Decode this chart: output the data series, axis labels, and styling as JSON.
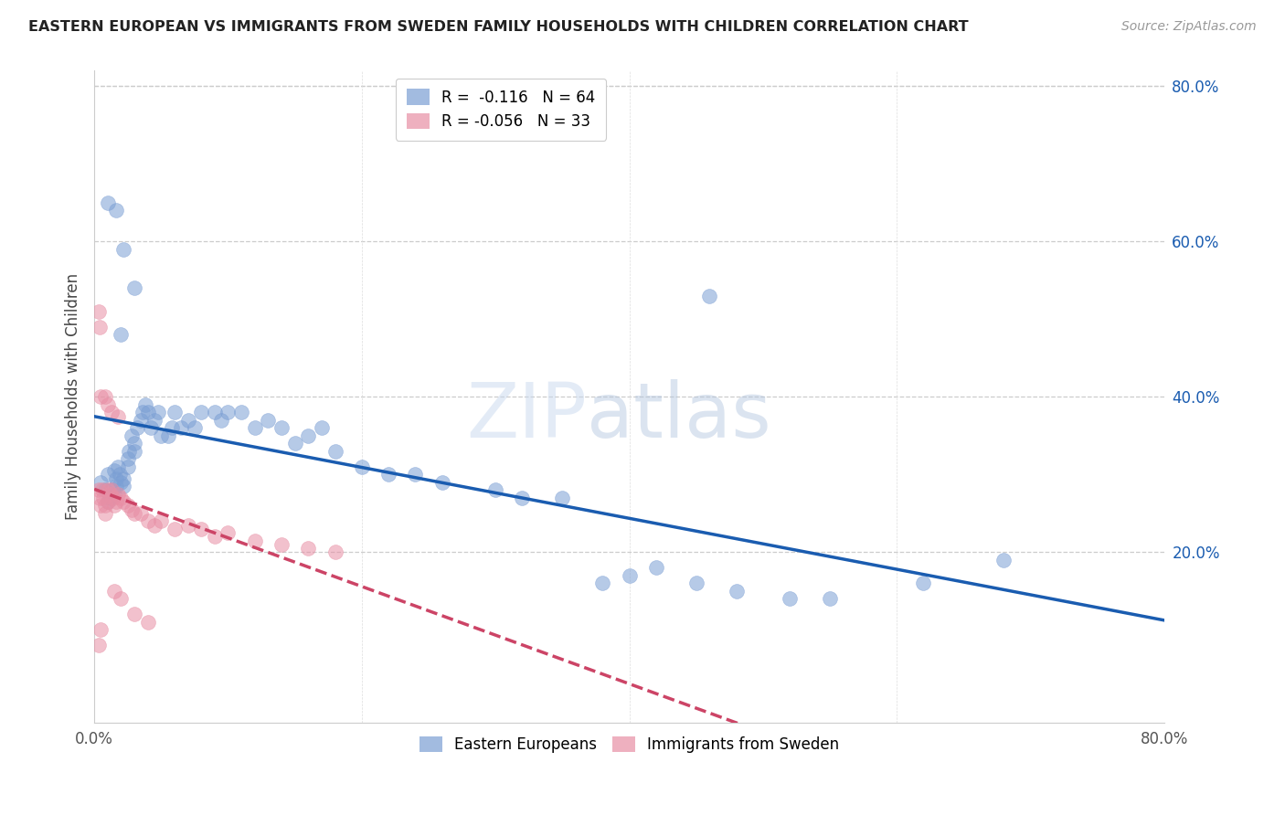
{
  "title": "EASTERN EUROPEAN VS IMMIGRANTS FROM SWEDEN FAMILY HOUSEHOLDS WITH CHILDREN CORRELATION CHART",
  "source": "Source: ZipAtlas.com",
  "ylabel": "Family Households with Children",
  "xlim": [
    0.0,
    0.8
  ],
  "ylim": [
    -0.02,
    0.82
  ],
  "blue_R": "-0.116",
  "blue_N": "64",
  "pink_R": "-0.056",
  "pink_N": "33",
  "blue_color": "#7B9FD4",
  "pink_color": "#E88FA5",
  "blue_line_color": "#1A5CB0",
  "pink_line_color": "#CC4466",
  "watermark_zip": "ZIP",
  "watermark_atlas": "atlas",
  "legend_label_blue": "Eastern Europeans",
  "legend_label_pink": "Immigrants from Sweden",
  "blue_x": [
    0.005,
    0.008,
    0.01,
    0.01,
    0.012,
    0.013,
    0.015,
    0.015,
    0.016,
    0.016,
    0.018,
    0.019,
    0.02,
    0.022,
    0.022,
    0.025,
    0.025,
    0.026,
    0.028,
    0.03,
    0.03,
    0.032,
    0.035,
    0.036,
    0.038,
    0.04,
    0.042,
    0.045,
    0.048,
    0.05,
    0.055,
    0.058,
    0.06,
    0.065,
    0.07,
    0.075,
    0.08,
    0.09,
    0.095,
    0.1,
    0.11,
    0.12,
    0.13,
    0.14,
    0.15,
    0.16,
    0.17,
    0.18,
    0.2,
    0.22,
    0.24,
    0.26,
    0.3,
    0.32,
    0.35,
    0.38,
    0.4,
    0.42,
    0.45,
    0.48,
    0.52,
    0.55,
    0.62,
    0.68
  ],
  "blue_y": [
    0.29,
    0.28,
    0.3,
    0.265,
    0.27,
    0.28,
    0.275,
    0.305,
    0.285,
    0.295,
    0.31,
    0.3,
    0.29,
    0.285,
    0.295,
    0.32,
    0.31,
    0.33,
    0.35,
    0.34,
    0.33,
    0.36,
    0.37,
    0.38,
    0.39,
    0.38,
    0.36,
    0.37,
    0.38,
    0.35,
    0.35,
    0.36,
    0.38,
    0.36,
    0.37,
    0.36,
    0.38,
    0.38,
    0.37,
    0.38,
    0.38,
    0.36,
    0.37,
    0.36,
    0.34,
    0.35,
    0.36,
    0.33,
    0.31,
    0.3,
    0.3,
    0.29,
    0.28,
    0.27,
    0.27,
    0.16,
    0.17,
    0.18,
    0.16,
    0.15,
    0.14,
    0.14,
    0.16,
    0.19
  ],
  "blue_y_outliers": [
    0.48,
    0.54,
    0.59,
    0.64,
    0.65,
    0.53
  ],
  "blue_x_outliers": [
    0.02,
    0.03,
    0.022,
    0.016,
    0.01,
    0.46
  ],
  "pink_x": [
    0.003,
    0.004,
    0.005,
    0.006,
    0.007,
    0.008,
    0.008,
    0.01,
    0.01,
    0.012,
    0.013,
    0.014,
    0.015,
    0.016,
    0.018,
    0.02,
    0.022,
    0.025,
    0.028,
    0.03,
    0.035,
    0.04,
    0.045,
    0.05,
    0.06,
    0.07,
    0.08,
    0.09,
    0.1,
    0.12,
    0.14,
    0.16,
    0.18
  ],
  "pink_y": [
    0.28,
    0.27,
    0.26,
    0.28,
    0.27,
    0.26,
    0.25,
    0.265,
    0.28,
    0.275,
    0.28,
    0.27,
    0.26,
    0.265,
    0.275,
    0.27,
    0.265,
    0.26,
    0.255,
    0.25,
    0.25,
    0.24,
    0.235,
    0.24,
    0.23,
    0.235,
    0.23,
    0.22,
    0.225,
    0.215,
    0.21,
    0.205,
    0.2
  ],
  "pink_y_outliers": [
    0.51,
    0.49,
    0.4,
    0.4,
    0.39,
    0.38,
    0.375,
    0.15,
    0.14,
    0.12,
    0.11,
    0.08,
    0.1
  ],
  "pink_x_outliers": [
    0.003,
    0.004,
    0.005,
    0.008,
    0.01,
    0.013,
    0.018,
    0.015,
    0.02,
    0.03,
    0.04,
    0.003,
    0.005
  ]
}
